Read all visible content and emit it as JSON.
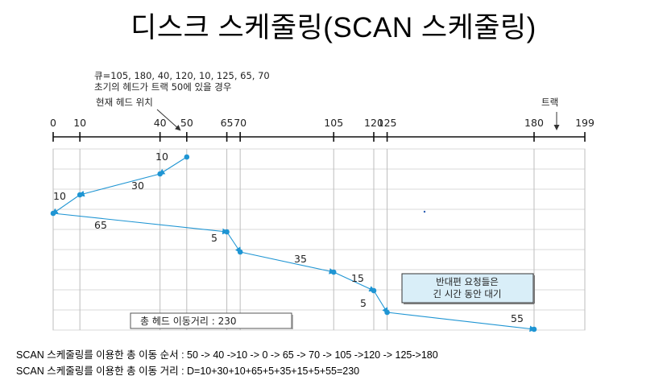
{
  "title": "디스크 스케줄링(SCAN 스케줄링)",
  "queue_line": "큐=105, 180, 40, 120, 10, 125, 65, 70",
  "initial_head_line": "초기의 헤드가 트랙 50에 있을 경우",
  "current_head_label": "현재 헤드 위치",
  "track_label": "트랙",
  "tick_labels": [
    "0",
    "10",
    "40",
    "50",
    "65",
    "70",
    "105",
    "120",
    "125",
    "180",
    "199"
  ],
  "seek_sequence": [
    50,
    40,
    10,
    0,
    65,
    70,
    105,
    120,
    125,
    180
  ],
  "move_distances": [
    "10",
    "30",
    "10",
    "65",
    "5",
    "35",
    "15",
    "5",
    "55"
  ],
  "total_box_label": "총 헤드 이동거리 : 230",
  "note_line1": "반대편 요청들은",
  "note_line2": "긴 시간 동안 대기",
  "caption_order": "SCAN 스케줄링를 이용한 총 이동 순서  : 50 -> 40 ->10 -> 0 -> 65 -> 70 -> 105 ->120 -> 125->180",
  "caption_distance": "SCAN 스케줄링를 이용한 총 이동 거리  : D=10+30+10+65+5+35+15+5+55=230",
  "colors": {
    "path": "#1f95d3",
    "grid": "#bdbdbd",
    "note_bg": "#d9eef8",
    "text": "#222222"
  }
}
